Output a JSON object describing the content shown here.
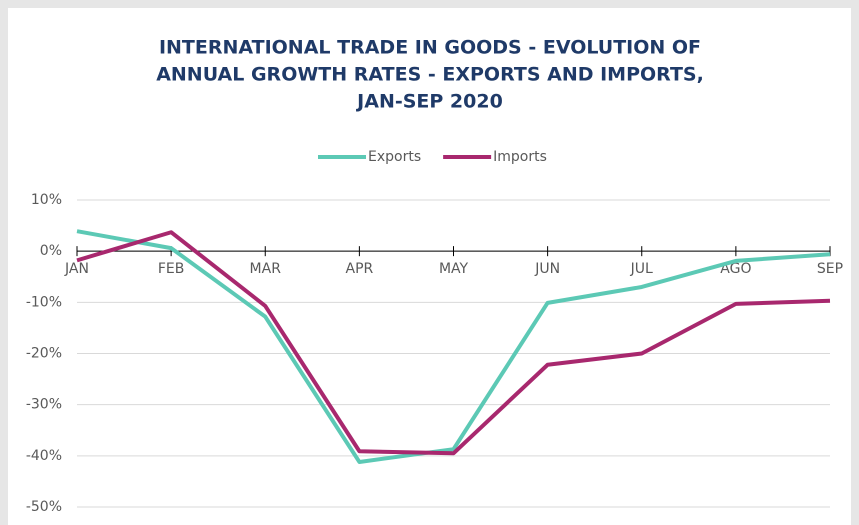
{
  "chart_data": {
    "type": "line",
    "title": [
      "INTERNATIONAL TRADE IN GOODS - EVOLUTION OF",
      "ANNUAL GROWTH RATES - EXPORTS AND IMPORTS,",
      "JAN-SEP 2020"
    ],
    "categories": [
      "JAN",
      "FEB",
      "MAR",
      "APR",
      "MAY",
      "JUN",
      "JUL",
      "AGO",
      "SEP"
    ],
    "series": [
      {
        "name": "Exports",
        "color": "#5cc9b5",
        "values": [
          3.9,
          0.6,
          -12.8,
          -41.2,
          -38.7,
          -10.1,
          -7.0,
          -1.9,
          -0.6
        ]
      },
      {
        "name": "Imports",
        "color": "#a8286e",
        "values": [
          -1.8,
          3.7,
          -10.7,
          -39.1,
          -39.5,
          -22.2,
          -20.0,
          -10.3,
          -9.7
        ]
      }
    ],
    "ylim": [
      -50,
      10
    ],
    "yticks": [
      {
        "value": -50,
        "label": "-50%"
      },
      {
        "value": -40,
        "label": "-40%"
      },
      {
        "value": -30,
        "label": "-30%"
      },
      {
        "value": -20,
        "label": "-20%"
      },
      {
        "value": -10,
        "label": "-10%"
      },
      {
        "value": 0,
        "label": "0%"
      },
      {
        "value": 10,
        "label": "10%"
      }
    ],
    "grid": true,
    "legend": "top"
  }
}
